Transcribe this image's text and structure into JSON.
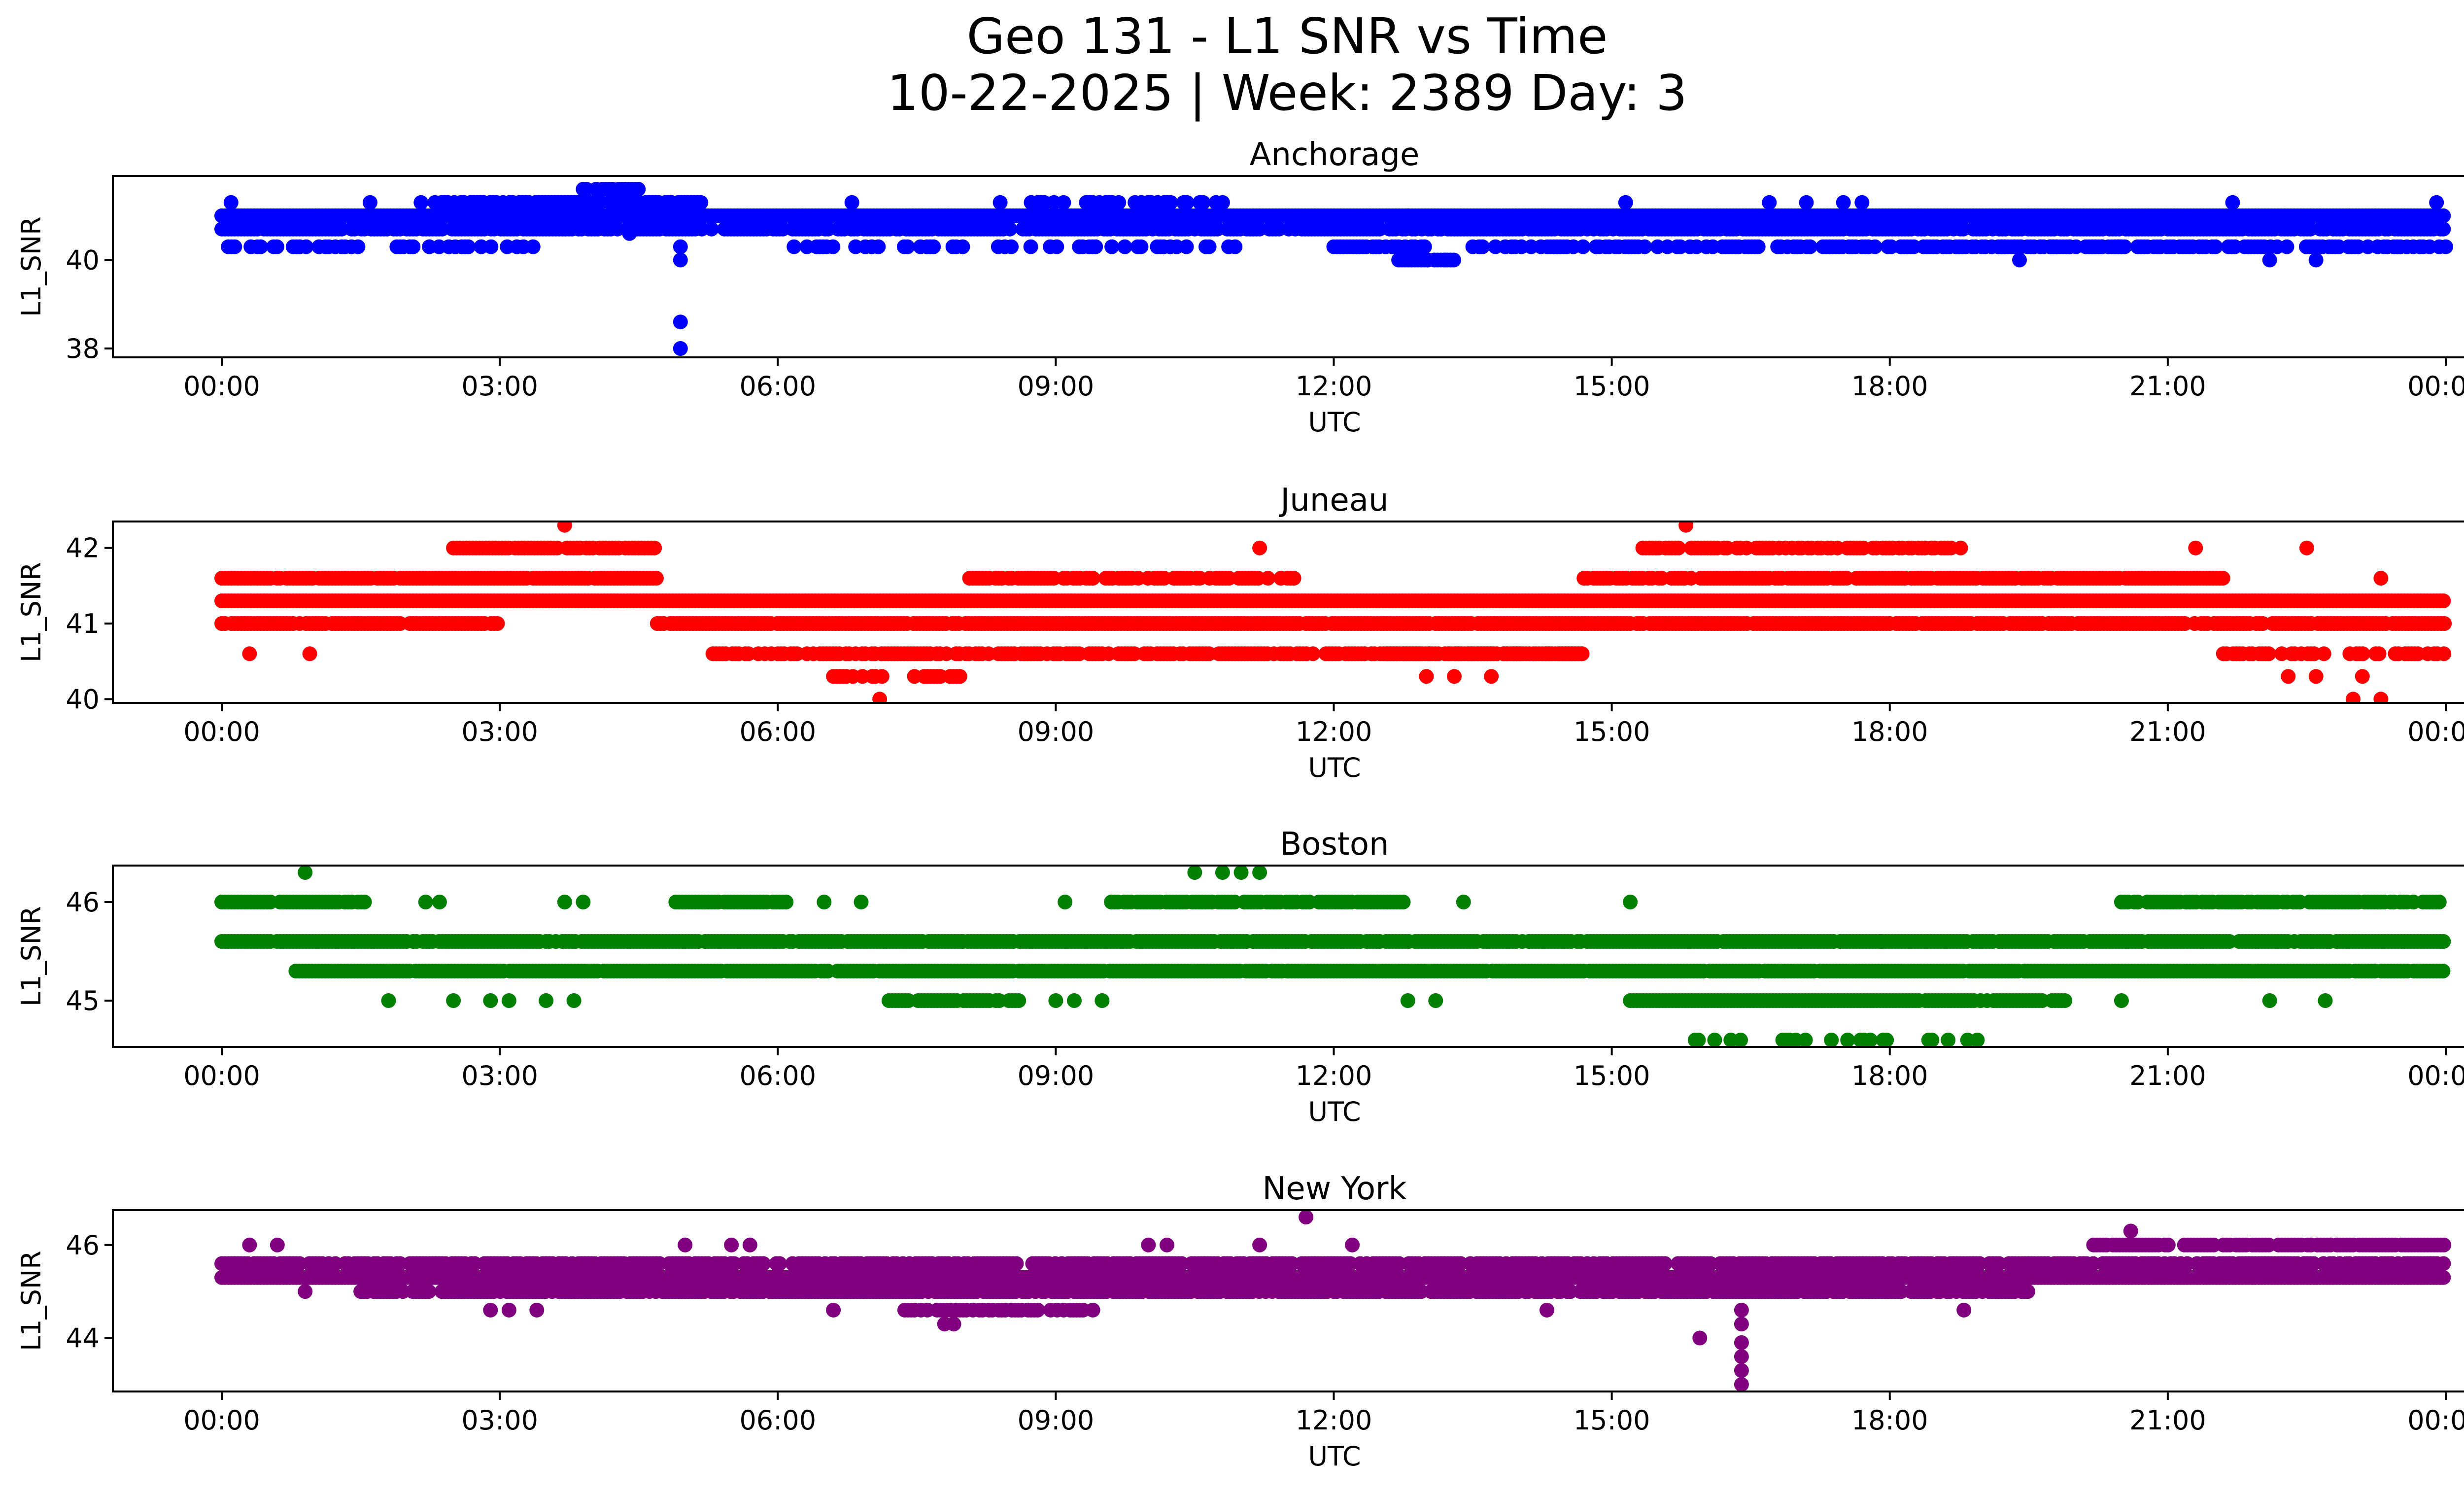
{
  "figure": {
    "title_line1": "Geo 131 - L1 SNR vs Time",
    "title_line2": "10-22-2025 | Week: 2389 Day: 3"
  },
  "chart_data": [
    {
      "type": "scatter",
      "title": "Anchorage",
      "xlabel": "UTC",
      "ylabel": "L1_SNR",
      "color": "#0000ff",
      "x_tick_labels": [
        "00:00",
        "03:00",
        "06:00",
        "09:00",
        "12:00",
        "15:00",
        "18:00",
        "21:00",
        "00:00"
      ],
      "y_ticks": [
        38,
        40
      ],
      "ylim": [
        37.8,
        41.9
      ],
      "x_unit": "hours UTC",
      "series": [
        {
          "segments": [
            {
              "x": [
                0.0,
                24.0
              ],
              "y": 41.0,
              "density": 1.0
            },
            {
              "x": [
                0.0,
                24.0
              ],
              "y": 40.7,
              "density": 0.8
            },
            {
              "x": [
                0.0,
                3.5
              ],
              "y": 40.3,
              "density": 0.4
            },
            {
              "x": [
                2.3,
                5.2
              ],
              "y": 41.3,
              "density": 0.8
            },
            {
              "x": [
                3.9,
                4.6
              ],
              "y": 41.6,
              "density": 0.6
            },
            {
              "x": [
                6.0,
                11.0
              ],
              "y": 40.3,
              "density": 0.3
            },
            {
              "x": [
                8.7,
                11.0
              ],
              "y": 41.3,
              "density": 0.4
            },
            {
              "x": [
                12.0,
                13.0
              ],
              "y": 40.3,
              "density": 0.9
            },
            {
              "x": [
                12.7,
                13.3
              ],
              "y": 40.0,
              "density": 0.9
            },
            {
              "x": [
                13.5,
                24.0
              ],
              "y": 40.3,
              "density": 0.6
            },
            {
              "x": [
                19.1,
                20.5
              ],
              "y": 40.3,
              "density": 0.6
            }
          ],
          "points": [
            {
              "x": 4.95,
              "y": 38.6
            },
            {
              "x": 4.95,
              "y": 38.0
            },
            {
              "x": 4.95,
              "y": 40.0
            },
            {
              "x": 4.95,
              "y": 40.3
            },
            {
              "x": 4.4,
              "y": 40.6
            },
            {
              "x": 0.1,
              "y": 41.3
            },
            {
              "x": 1.6,
              "y": 41.3
            },
            {
              "x": 2.15,
              "y": 41.3
            },
            {
              "x": 6.8,
              "y": 41.3
            },
            {
              "x": 8.4,
              "y": 41.3
            },
            {
              "x": 12.8,
              "y": 41.0
            },
            {
              "x": 13.2,
              "y": 40.0
            },
            {
              "x": 15.15,
              "y": 41.3
            },
            {
              "x": 16.7,
              "y": 41.3
            },
            {
              "x": 17.1,
              "y": 41.3
            },
            {
              "x": 17.5,
              "y": 41.3
            },
            {
              "x": 17.7,
              "y": 41.3
            },
            {
              "x": 19.4,
              "y": 40.0
            },
            {
              "x": 21.7,
              "y": 41.3
            },
            {
              "x": 22.1,
              "y": 40.0
            },
            {
              "x": 22.6,
              "y": 40.0
            },
            {
              "x": 23.9,
              "y": 41.3
            }
          ]
        }
      ]
    },
    {
      "type": "scatter",
      "title": "Juneau",
      "xlabel": "UTC",
      "ylabel": "L1_SNR",
      "color": "#ff0000",
      "x_tick_labels": [
        "00:00",
        "03:00",
        "06:00",
        "09:00",
        "12:00",
        "15:00",
        "18:00",
        "21:00",
        "00:00"
      ],
      "y_ticks": [
        40,
        41,
        42
      ],
      "ylim": [
        39.95,
        42.35
      ],
      "x_unit": "hours UTC",
      "series": [
        {
          "segments": [
            {
              "x": [
                0.0,
                24.0
              ],
              "y": 41.3,
              "density": 1.0
            },
            {
              "x": [
                0.0,
                4.7
              ],
              "y": 41.6,
              "density": 0.95
            },
            {
              "x": [
                0.0,
                3.0
              ],
              "y": 41.0,
              "density": 0.9
            },
            {
              "x": [
                2.5,
                4.7
              ],
              "y": 42.0,
              "density": 0.9
            },
            {
              "x": [
                4.7,
                24.0
              ],
              "y": 41.0,
              "density": 0.95
            },
            {
              "x": [
                5.3,
                14.7
              ],
              "y": 40.6,
              "density": 0.7
            },
            {
              "x": [
                6.6,
                8.0
              ],
              "y": 40.3,
              "density": 0.6
            },
            {
              "x": [
                8.0,
                11.6
              ],
              "y": 41.6,
              "density": 0.7
            },
            {
              "x": [
                14.7,
                21.6
              ],
              "y": 41.6,
              "density": 0.9
            },
            {
              "x": [
                15.3,
                18.8
              ],
              "y": 42.0,
              "density": 0.7
            },
            {
              "x": [
                21.6,
                24.0
              ],
              "y": 40.6,
              "density": 0.45
            },
            {
              "x": [
                12.5,
                14.7
              ],
              "y": 40.6,
              "density": 0.9
            }
          ],
          "points": [
            {
              "x": 3.7,
              "y": 42.3
            },
            {
              "x": 15.8,
              "y": 42.3
            },
            {
              "x": 7.1,
              "y": 40.0
            },
            {
              "x": 23.0,
              "y": 40.0
            },
            {
              "x": 23.3,
              "y": 40.0
            },
            {
              "x": 0.3,
              "y": 40.6
            },
            {
              "x": 0.95,
              "y": 40.6
            },
            {
              "x": 13.0,
              "y": 40.3
            },
            {
              "x": 13.3,
              "y": 40.3
            },
            {
              "x": 13.7,
              "y": 40.3
            },
            {
              "x": 22.3,
              "y": 40.3
            },
            {
              "x": 22.6,
              "y": 40.3
            },
            {
              "x": 23.1,
              "y": 40.3
            },
            {
              "x": 11.2,
              "y": 42.0
            },
            {
              "x": 21.3,
              "y": 42.0
            },
            {
              "x": 22.5,
              "y": 42.0
            },
            {
              "x": 23.3,
              "y": 41.6
            }
          ]
        }
      ]
    },
    {
      "type": "scatter",
      "title": "Boston",
      "xlabel": "UTC",
      "ylabel": "L1_SNR",
      "color": "#008000",
      "x_tick_labels": [
        "00:00",
        "03:00",
        "06:00",
        "09:00",
        "12:00",
        "15:00",
        "18:00",
        "21:00",
        "00:00"
      ],
      "y_ticks": [
        45,
        46
      ],
      "ylim": [
        44.53,
        46.37
      ],
      "x_unit": "hours UTC",
      "series": [
        {
          "segments": [
            {
              "x": [
                0.0,
                24.0
              ],
              "y": 45.6,
              "density": 0.95
            },
            {
              "x": [
                0.8,
                24.0
              ],
              "y": 45.3,
              "density": 0.95
            },
            {
              "x": [
                0.0,
                1.6
              ],
              "y": 46.0,
              "density": 0.9
            },
            {
              "x": [
                4.9,
                6.1
              ],
              "y": 46.0,
              "density": 0.9
            },
            {
              "x": [
                9.6,
                12.8
              ],
              "y": 46.0,
              "density": 0.8
            },
            {
              "x": [
                7.2,
                8.6
              ],
              "y": 45.0,
              "density": 0.9
            },
            {
              "x": [
                15.2,
                19.9
              ],
              "y": 45.0,
              "density": 0.95
            },
            {
              "x": [
                20.5,
                24.0
              ],
              "y": 46.0,
              "density": 0.85
            },
            {
              "x": [
                15.9,
                19.2
              ],
              "y": 44.6,
              "density": 0.25
            }
          ],
          "points": [
            {
              "x": 0.9,
              "y": 46.3
            },
            {
              "x": 10.5,
              "y": 46.3
            },
            {
              "x": 10.8,
              "y": 46.3
            },
            {
              "x": 11.0,
              "y": 46.3
            },
            {
              "x": 11.2,
              "y": 46.3
            },
            {
              "x": 1.8,
              "y": 45.0
            },
            {
              "x": 2.5,
              "y": 45.0
            },
            {
              "x": 2.9,
              "y": 45.0
            },
            {
              "x": 3.1,
              "y": 45.0
            },
            {
              "x": 3.5,
              "y": 45.0
            },
            {
              "x": 3.8,
              "y": 45.0
            },
            {
              "x": 9.0,
              "y": 45.0
            },
            {
              "x": 9.2,
              "y": 45.0
            },
            {
              "x": 9.5,
              "y": 45.0
            },
            {
              "x": 12.8,
              "y": 45.0
            },
            {
              "x": 13.1,
              "y": 45.0
            },
            {
              "x": 20.5,
              "y": 45.0
            },
            {
              "x": 22.1,
              "y": 45.0
            },
            {
              "x": 22.7,
              "y": 45.0
            },
            {
              "x": 2.2,
              "y": 46.0
            },
            {
              "x": 2.35,
              "y": 46.0
            },
            {
              "x": 3.7,
              "y": 46.0
            },
            {
              "x": 3.9,
              "y": 46.0
            },
            {
              "x": 6.5,
              "y": 46.0
            },
            {
              "x": 6.9,
              "y": 46.0
            },
            {
              "x": 9.1,
              "y": 46.0
            },
            {
              "x": 13.4,
              "y": 46.0
            },
            {
              "x": 15.2,
              "y": 46.0
            },
            {
              "x": 8.0,
              "y": 45.6
            },
            {
              "x": 17.9,
              "y": 45.6
            },
            {
              "x": 11.5,
              "y": 45.3
            }
          ]
        }
      ]
    },
    {
      "type": "scatter",
      "title": "New York",
      "xlabel": "UTC",
      "ylabel": "L1_SNR",
      "color": "#800080",
      "x_tick_labels": [
        "00:00",
        "03:00",
        "06:00",
        "09:00",
        "12:00",
        "15:00",
        "18:00",
        "21:00",
        "00:00"
      ],
      "y_ticks": [
        44,
        46
      ],
      "ylim": [
        42.85,
        46.75
      ],
      "x_unit": "hours UTC",
      "series": [
        {
          "segments": [
            {
              "x": [
                0.0,
                24.0
              ],
              "y": 45.3,
              "density": 1.0
            },
            {
              "x": [
                0.0,
                24.0
              ],
              "y": 45.6,
              "density": 0.8
            },
            {
              "x": [
                1.5,
                19.5
              ],
              "y": 45.0,
              "density": 0.9
            },
            {
              "x": [
                7.3,
                9.4
              ],
              "y": 44.6,
              "density": 0.6
            },
            {
              "x": [
                20.2,
                24.0
              ],
              "y": 46.0,
              "density": 0.9
            }
          ],
          "points": [
            {
              "x": 16.4,
              "y": 44.6
            },
            {
              "x": 16.4,
              "y": 44.3
            },
            {
              "x": 16.4,
              "y": 43.9
            },
            {
              "x": 16.4,
              "y": 43.6
            },
            {
              "x": 16.4,
              "y": 43.3
            },
            {
              "x": 16.4,
              "y": 43.0
            },
            {
              "x": 15.95,
              "y": 44.0
            },
            {
              "x": 11.7,
              "y": 46.6
            },
            {
              "x": 20.6,
              "y": 46.3
            },
            {
              "x": 0.3,
              "y": 46.0
            },
            {
              "x": 0.6,
              "y": 46.0
            },
            {
              "x": 5.0,
              "y": 46.0
            },
            {
              "x": 5.5,
              "y": 46.0
            },
            {
              "x": 5.7,
              "y": 46.0
            },
            {
              "x": 10.0,
              "y": 46.0
            },
            {
              "x": 10.2,
              "y": 46.0
            },
            {
              "x": 11.2,
              "y": 46.0
            },
            {
              "x": 12.2,
              "y": 46.0
            },
            {
              "x": 2.9,
              "y": 44.6
            },
            {
              "x": 3.1,
              "y": 44.6
            },
            {
              "x": 3.4,
              "y": 44.6
            },
            {
              "x": 14.3,
              "y": 44.6
            },
            {
              "x": 18.8,
              "y": 44.6
            },
            {
              "x": 7.8,
              "y": 44.3
            },
            {
              "x": 7.9,
              "y": 44.3
            },
            {
              "x": 0.9,
              "y": 45.0
            },
            {
              "x": 6.6,
              "y": 44.6
            }
          ]
        }
      ]
    }
  ]
}
